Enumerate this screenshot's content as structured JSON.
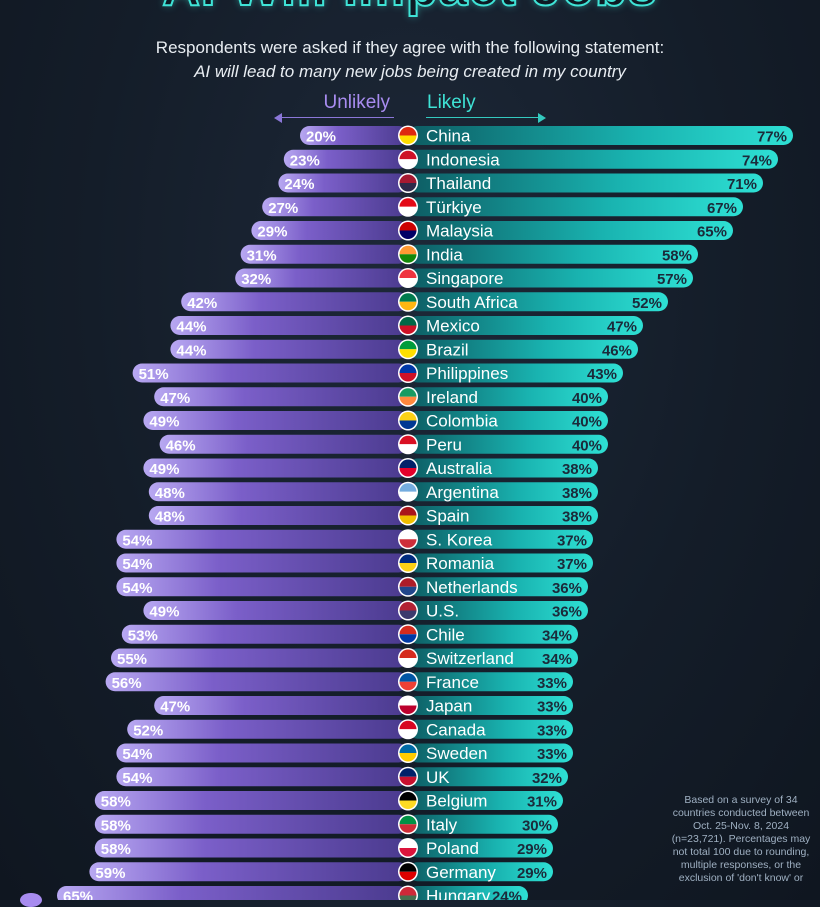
{
  "header": {
    "title": "AI Will Impact Jobs",
    "subtitle": "Respondents were asked if they agree with the following statement:",
    "statement": "AI will lead to many new jobs being created in my country"
  },
  "legend": {
    "unlikely": "Unlikely",
    "likely": "Likely"
  },
  "footnote": "Based on a survey of 34 countries conducted between Oct. 25-Nov. 8, 2024 (n=23,721). Percentages may not total 100 due to rounding, multiple responses, or the exclusion of 'don't know' or",
  "colors": {
    "unlikely": "#7b5fc9",
    "likely": "#19b3b0",
    "value_text": "#1b2a3a",
    "unlikely_text": "#ffffff"
  },
  "chart_data": {
    "type": "bar",
    "orientation": "horizontal-diverging",
    "value_suffix": "%",
    "categories": [
      "China",
      "Indonesia",
      "Thailand",
      "Türkiye",
      "Malaysia",
      "India",
      "Singapore",
      "South Africa",
      "Mexico",
      "Brazil",
      "Philippines",
      "Ireland",
      "Colombia",
      "Peru",
      "Australia",
      "Argentina",
      "Spain",
      "S. Korea",
      "Romania",
      "Netherlands",
      "U.S.",
      "Chile",
      "Switzerland",
      "France",
      "Japan",
      "Canada",
      "Sweden",
      "UK",
      "Belgium",
      "Italy",
      "Poland",
      "Germany",
      "Hungary"
    ],
    "series": [
      {
        "name": "Unlikely",
        "values": [
          20,
          23,
          24,
          27,
          29,
          31,
          32,
          42,
          44,
          44,
          51,
          47,
          49,
          46,
          49,
          48,
          48,
          54,
          54,
          54,
          49,
          53,
          55,
          56,
          47,
          52,
          54,
          54,
          58,
          58,
          58,
          59,
          65
        ]
      },
      {
        "name": "Likely",
        "values": [
          77,
          74,
          71,
          67,
          65,
          58,
          57,
          52,
          47,
          46,
          43,
          40,
          40,
          40,
          38,
          38,
          38,
          37,
          37,
          36,
          36,
          34,
          34,
          33,
          33,
          33,
          33,
          32,
          31,
          30,
          29,
          29,
          24
        ]
      }
    ],
    "flags": [
      "flag-china",
      "flag-indonesia",
      "flag-thailand",
      "flag-turkiye",
      "flag-malaysia",
      "flag-india",
      "flag-singapore",
      "flag-south-africa",
      "flag-mexico",
      "flag-brazil",
      "flag-philippines",
      "flag-ireland",
      "flag-colombia",
      "flag-peru",
      "flag-australia",
      "flag-argentina",
      "flag-spain",
      "flag-s-korea",
      "flag-romania",
      "flag-netherlands",
      "flag-us",
      "flag-chile",
      "flag-switzerland",
      "flag-france",
      "flag-japan",
      "flag-canada",
      "flag-sweden",
      "flag-uk",
      "flag-belgium",
      "flag-italy",
      "flag-poland",
      "flag-germany",
      "flag-hungary"
    ]
  }
}
